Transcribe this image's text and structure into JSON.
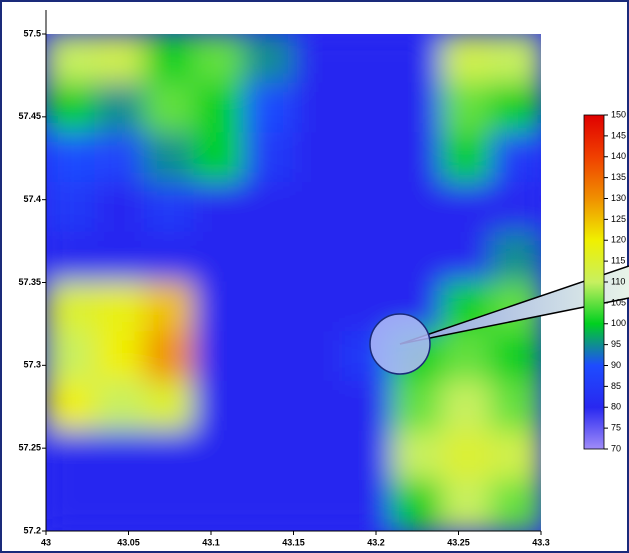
{
  "chart_data": {
    "type": "heatmap",
    "xlim": [
      43,
      43.3
    ],
    "xticks": [
      43,
      43.05,
      43.1,
      43.15,
      43.2,
      43.25,
      43.3
    ],
    "ylim": [
      57.2,
      57.5
    ],
    "yticks": [
      57.2,
      57.25,
      57.3,
      57.35,
      57.4,
      57.45,
      57.5
    ],
    "z": [
      [
        110,
        112,
        100,
        105,
        95,
        80,
        80,
        80,
        112,
        110
      ],
      [
        100,
        95,
        105,
        100,
        90,
        80,
        80,
        80,
        105,
        100
      ],
      [
        90,
        88,
        95,
        100,
        85,
        80,
        80,
        80,
        100,
        85
      ],
      [
        85,
        80,
        85,
        80,
        80,
        80,
        80,
        80,
        80,
        80
      ],
      [
        80,
        80,
        80,
        80,
        80,
        80,
        80,
        80,
        80,
        95
      ],
      [
        115,
        118,
        125,
        80,
        80,
        80,
        80,
        80,
        100,
        105
      ],
      [
        110,
        120,
        130,
        80,
        80,
        80,
        85,
        100,
        105,
        100
      ],
      [
        120,
        110,
        115,
        80,
        80,
        80,
        80,
        105,
        110,
        105
      ],
      [
        80,
        80,
        80,
        80,
        80,
        80,
        80,
        110,
        115,
        112
      ],
      [
        80,
        80,
        80,
        80,
        80,
        80,
        80,
        100,
        110,
        105
      ]
    ],
    "clim": [
      70,
      150
    ],
    "cticks": [
      70,
      75,
      80,
      85,
      90,
      95,
      100,
      105,
      110,
      115,
      120,
      125,
      130,
      135,
      140,
      145,
      150
    ],
    "colormap": [
      "#a08cf8",
      "#2828f0",
      "#1e4cff",
      "#00d020",
      "#c8f060",
      "#f0f000",
      "#f09000",
      "#f04000",
      "#e00000"
    ]
  }
}
